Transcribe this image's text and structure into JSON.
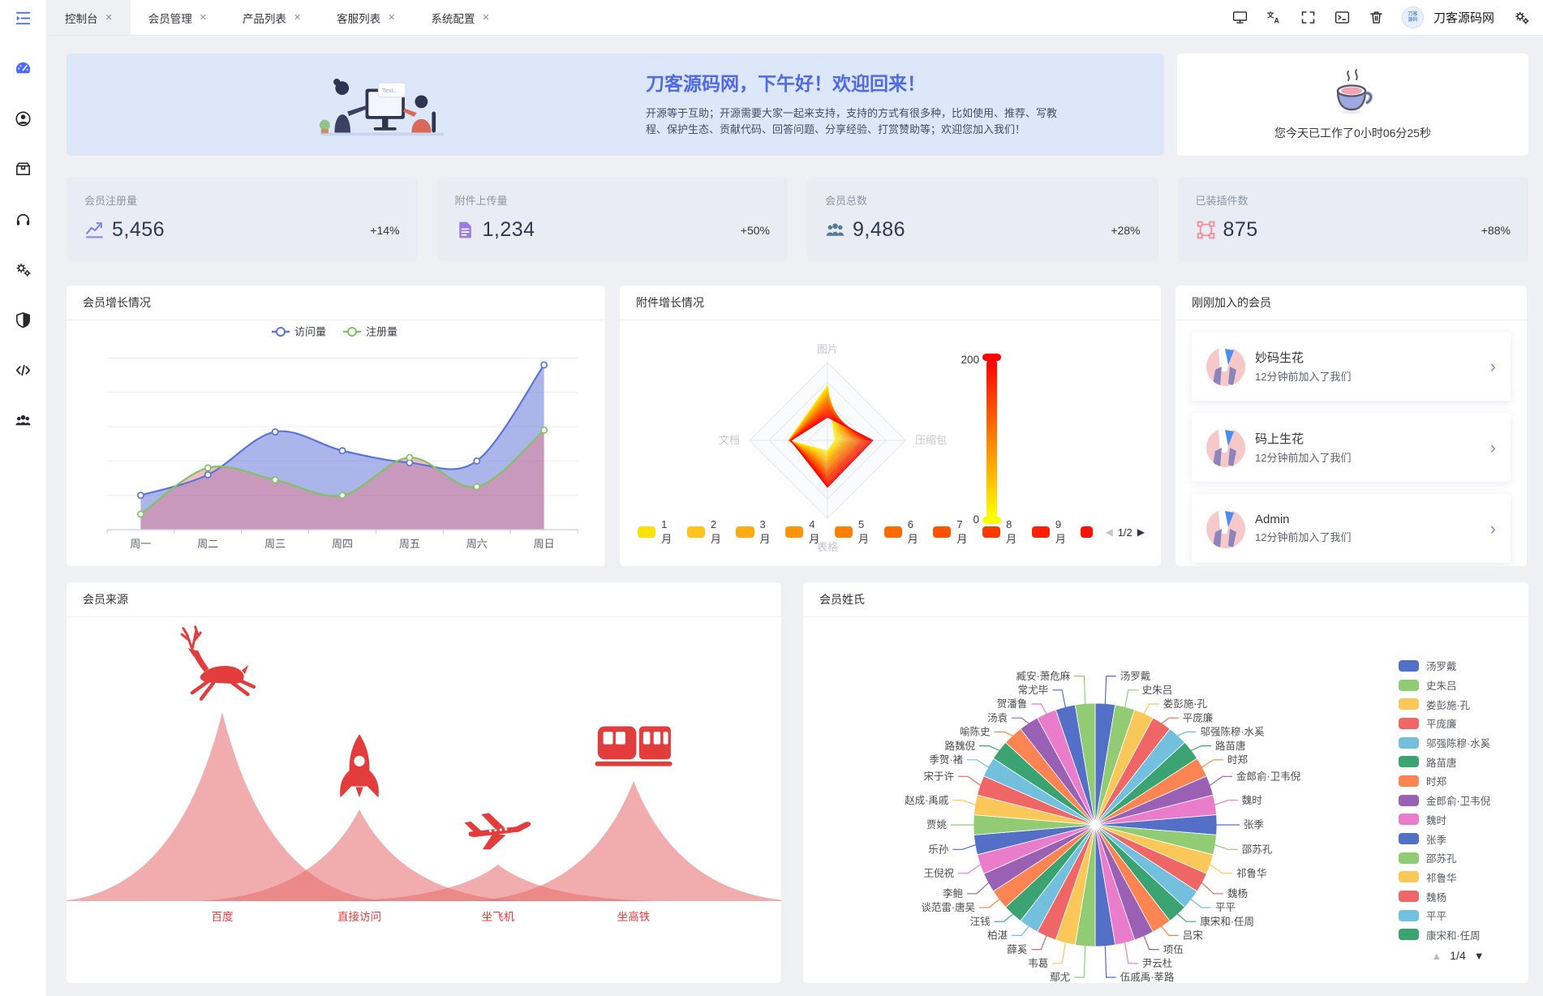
{
  "topbar": {
    "site_name": "刀客源码网"
  },
  "tabs": [
    {
      "label": "控制台"
    },
    {
      "label": "会员管理"
    },
    {
      "label": "产品列表"
    },
    {
      "label": "客服列表"
    },
    {
      "label": "系统配置"
    }
  ],
  "welcome": {
    "title": "刀客源码网，下午好！欢迎回来！",
    "desc1": "开源等于互助；开源需要大家一起来支持，支持的方式有很多种，比如使用、推荐、写教",
    "desc2": "程、保护生态、贡献代码、回答问题、分享经验、打赏赞助等；欢迎您加入我们！",
    "illustration_screen_text": "Text...",
    "work_time": "您今天已工作了0小时06分25秒"
  },
  "stats": [
    {
      "label": "会员注册量",
      "value": "5,456",
      "delta": "+14%"
    },
    {
      "label": "附件上传量",
      "value": "1,234",
      "delta": "+50%"
    },
    {
      "label": "会员总数",
      "value": "9,486",
      "delta": "+28%"
    },
    {
      "label": "已装插件数",
      "value": "875",
      "delta": "+88%"
    }
  ],
  "cards": {
    "member_growth_title": "会员增长情况",
    "attachment_growth_title": "附件增长情况",
    "new_members_title": "刚刚加入的会员",
    "member_source_title": "会员来源",
    "member_surname_title": "会员姓氏"
  },
  "new_members": [
    {
      "name": "妙码生花",
      "time": "12分钟前加入了我们"
    },
    {
      "name": "码上生花",
      "time": "12分钟前加入了我们"
    },
    {
      "name": "Admin",
      "time": "12分钟前加入了我们"
    }
  ],
  "chart_data": [
    {
      "type": "line",
      "title": "会员增长情况",
      "categories": [
        "周一",
        "周二",
        "周三",
        "周四",
        "周五",
        "周六",
        "周日"
      ],
      "series": [
        {
          "name": "访问量",
          "color": "#5b74d8",
          "area": "rgba(104,121,217,0.55)",
          "values": [
            100,
            160,
            285,
            230,
            195,
            200,
            480
          ]
        },
        {
          "name": "注册量",
          "color": "#7fc463",
          "area": "rgba(230,124,144,0.5)",
          "values": [
            45,
            180,
            145,
            100,
            210,
            125,
            290
          ]
        }
      ],
      "ylim": [
        0,
        520
      ],
      "grid": true,
      "legend_position": "top"
    },
    {
      "type": "radar",
      "title": "附件增长情况",
      "axes": [
        "图片",
        "压缩包",
        "表格",
        "文档"
      ],
      "max": 200,
      "series_count": 24,
      "range": {
        "图片": [
          140,
          60
        ],
        "压缩包": [
          20,
          116
        ],
        "表格": [
          28,
          120
        ],
        "文档": [
          100,
          94
        ]
      },
      "months": [
        {
          "label": "1月",
          "color": "#ffe10a"
        },
        {
          "label": "2月",
          "color": "#ffc51e"
        },
        {
          "label": "3月",
          "color": "#ffab13"
        },
        {
          "label": "4月",
          "color": "#ff9409"
        },
        {
          "label": "5月",
          "color": "#ff7e05"
        },
        {
          "label": "6月",
          "color": "#ff6902"
        },
        {
          "label": "7月",
          "color": "#ff5101"
        },
        {
          "label": "8月",
          "color": "#ff3a00"
        },
        {
          "label": "9月",
          "color": "#ff2100"
        },
        {
          "label": "",
          "color": "#ff0f00"
        }
      ],
      "visual_map": {
        "max": 200,
        "min": 0,
        "top_color": "#ff0000",
        "bottom_color": "#ffff00"
      },
      "pager": "1/2"
    },
    {
      "type": "pictorial",
      "title": "会员来源",
      "categories": [
        "百度",
        "直接访问",
        "坐飞机",
        "坐高铁"
      ],
      "values": [
        233,
        113,
        45,
        148
      ],
      "icons": [
        "deer",
        "rocket",
        "plane",
        "train"
      ],
      "color": "rgba(229,106,106,0.55)",
      "icon_color": "#e23c3c",
      "label_color": "#e23c3c"
    },
    {
      "type": "pie",
      "title": "会员姓氏",
      "palette": [
        "#5470c6",
        "#91cc75",
        "#fac858",
        "#ee6666",
        "#73c0de",
        "#3ba272",
        "#fc8452",
        "#9a60b4",
        "#ea7ccc"
      ],
      "labels": [
        "汤罗戴",
        "史朱吕",
        "娄彭施·孔",
        "平庞廉",
        "邬强陈穆·水奚",
        "路苗唐",
        "时郑",
        "金郎俞·卫韦倪",
        "魏时",
        "张季",
        "邵苏孔",
        "祁鲁华",
        "魏杨",
        "平平",
        "康宋和·任周",
        "吕宋",
        "项伍",
        "尹云杜",
        "伍戚禹·莘路",
        "鄢尤",
        "韦葛",
        "薛奚",
        "柏湛",
        "汪钱",
        "谈范雷·唐吴",
        "李鲍",
        "王倪祝",
        "乐孙",
        "贾姚",
        "赵成·禹戚",
        "宋于许",
        "季贺·褚",
        "路魏倪",
        "喻陈史",
        "汤袁",
        "贺潘鲁",
        "常尤毕",
        "臧安·萧危麻"
      ],
      "values": [
        1,
        1,
        1,
        1,
        1,
        1,
        1,
        1,
        1,
        1,
        1,
        1,
        1,
        1,
        1,
        1,
        1,
        1,
        1,
        1,
        1,
        1,
        1,
        1,
        1,
        1,
        1,
        1,
        1,
        1,
        1,
        1,
        1,
        1,
        1,
        1,
        1,
        1
      ],
      "legend_visible_count": 15,
      "pager": "1/4"
    }
  ]
}
